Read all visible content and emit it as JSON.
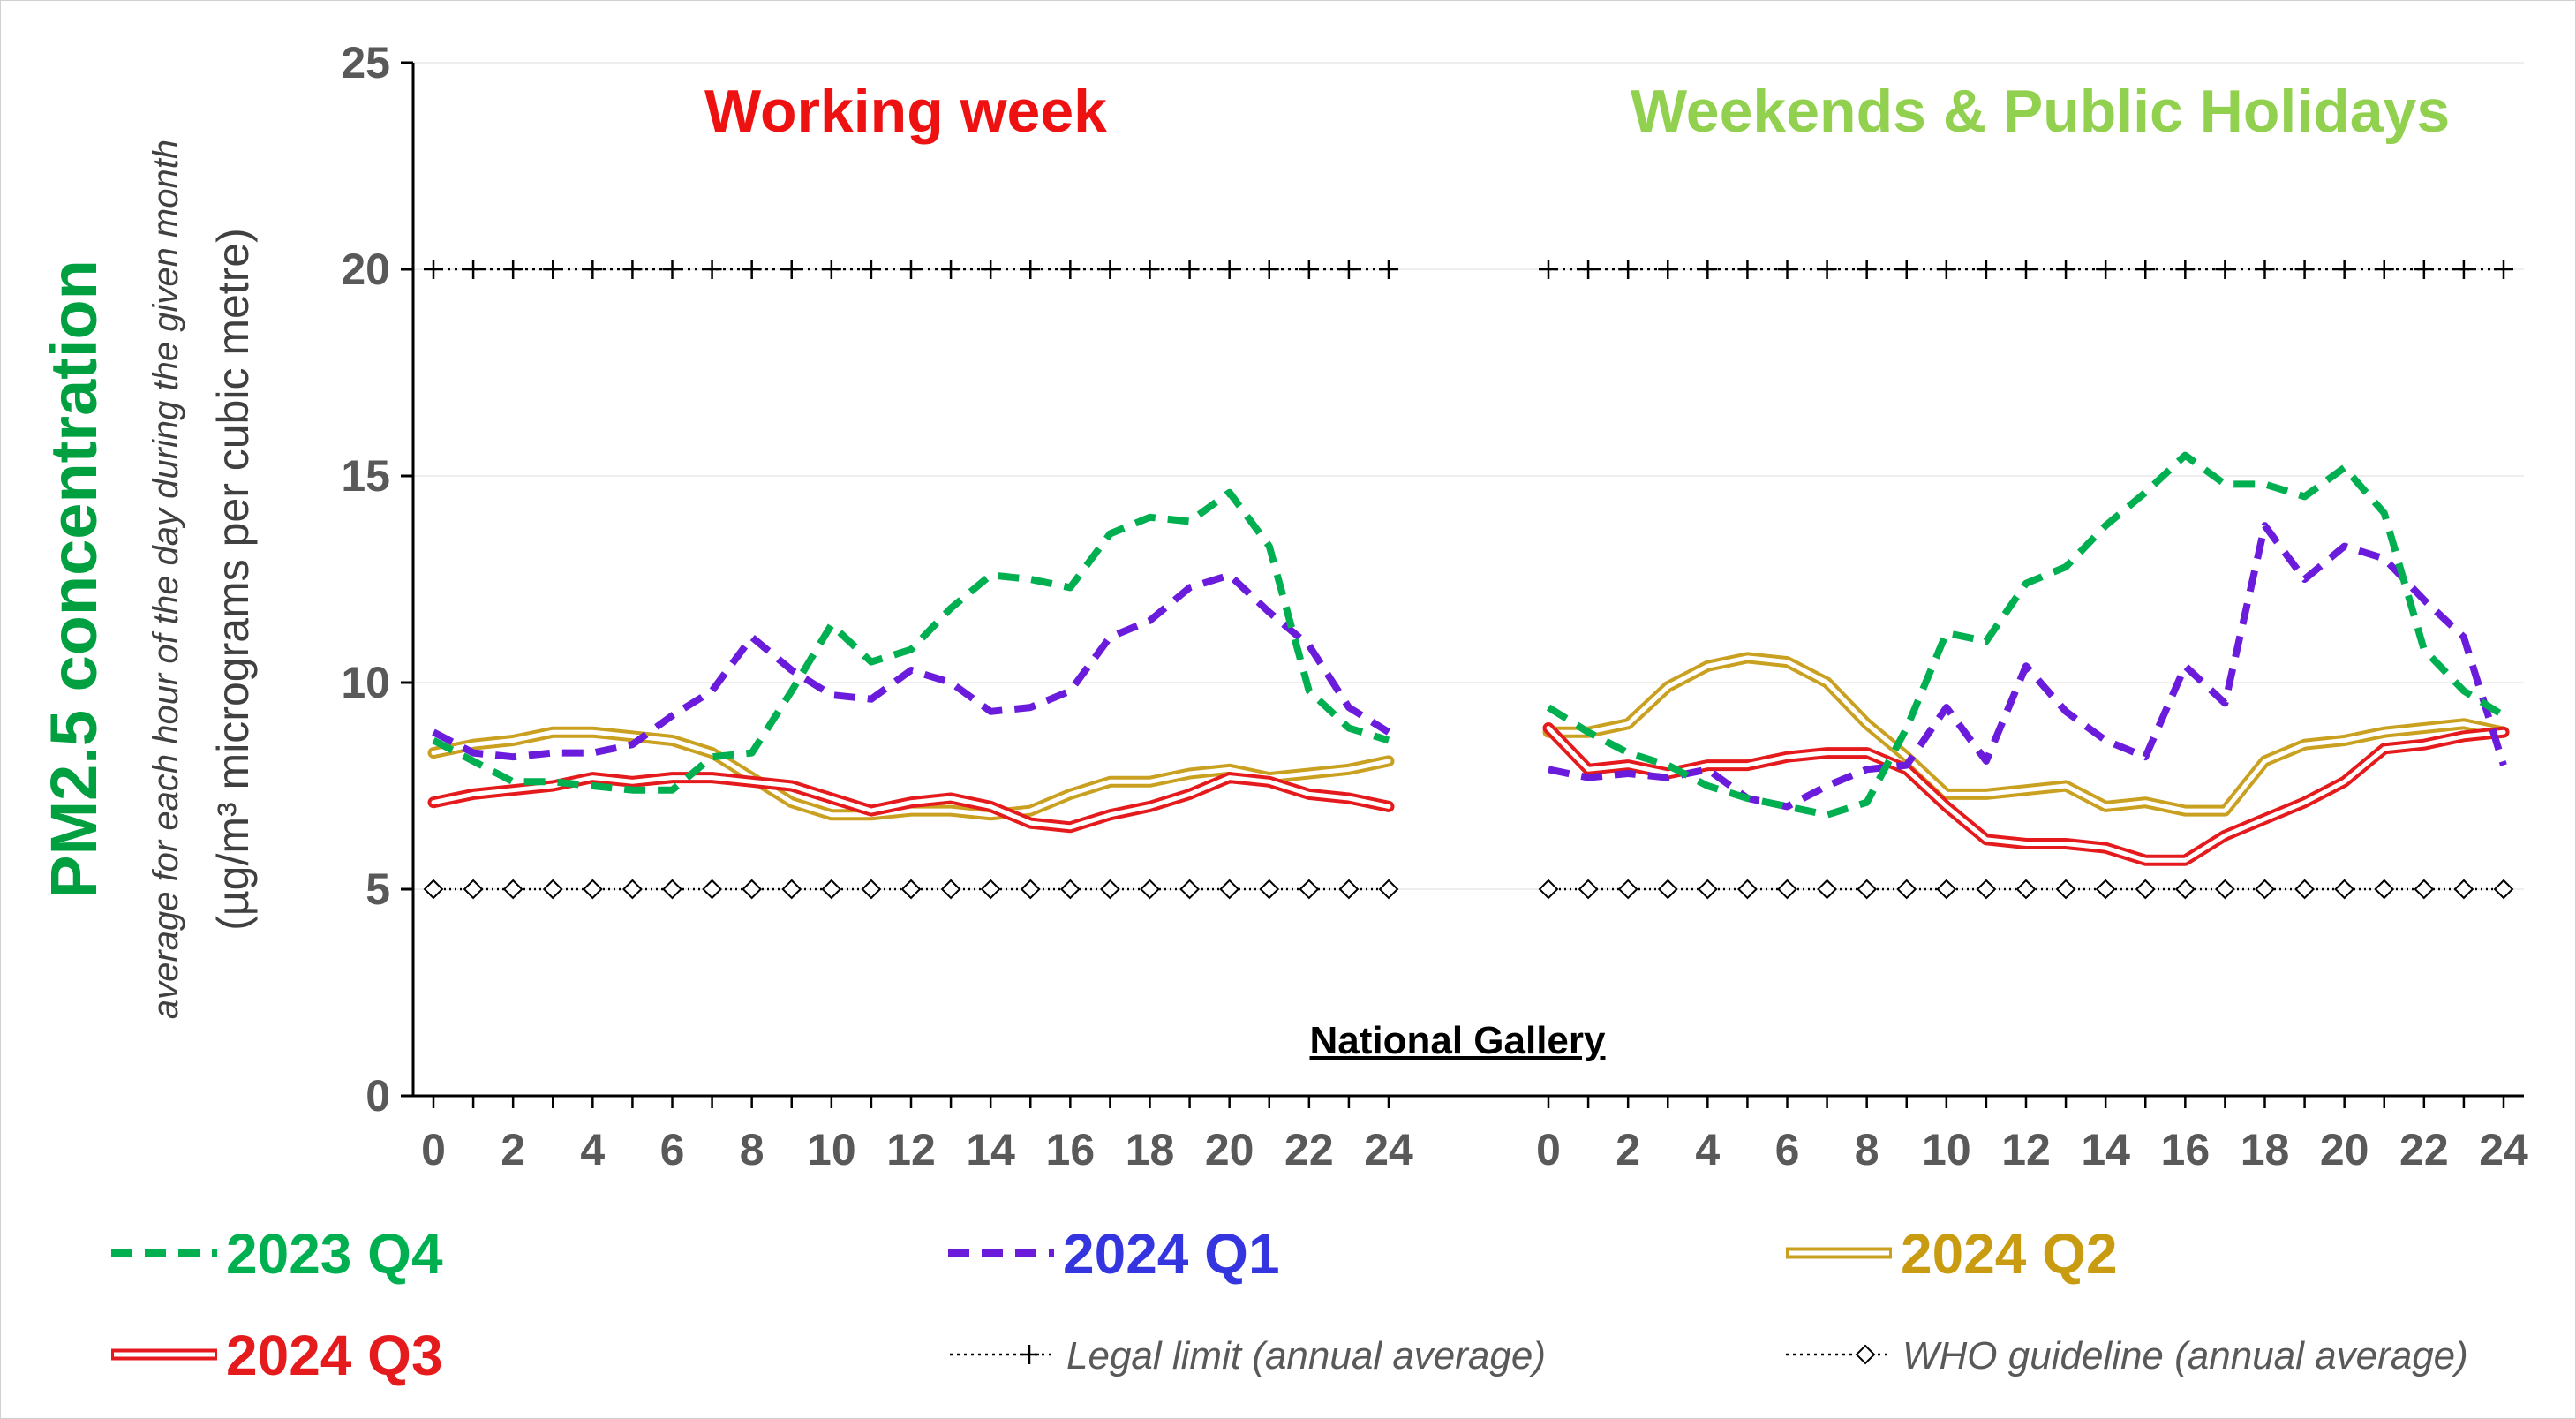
{
  "chart_data": {
    "type": "line",
    "ylabel": "PM2.5 concentration",
    "ylabel_sub": "average for each hour of the day during the given month",
    "ylabel_unit": "(µg/m³ micrograms per cubic metre)",
    "ylim": [
      0,
      25
    ],
    "yticks": [
      0,
      5,
      10,
      15,
      20,
      25
    ],
    "xticks": [
      0,
      2,
      4,
      6,
      8,
      10,
      12,
      14,
      16,
      18,
      20,
      22,
      24
    ],
    "site": "National Gallery",
    "grid": "horizontal",
    "colors": {
      "q4_2023": "#00b050",
      "q1_2024": "#6a1bdc",
      "q2_2024": "#c9a020",
      "q3_2024": "#e41a1c",
      "working_title": "#ee1111",
      "weekend_title": "#92d050",
      "legend_q1_text": "#3535e0",
      "legend_q2_text": "#c89b10",
      "reference": "#000000"
    },
    "legend": [
      {
        "key": "q4_2023",
        "label": "2023 Q4",
        "style": "dashed"
      },
      {
        "key": "q1_2024",
        "label": "2024 Q1",
        "style": "dashed"
      },
      {
        "key": "q2_2024",
        "label": "2024 Q2",
        "style": "double"
      },
      {
        "key": "q3_2024",
        "label": "2024 Q3",
        "style": "double"
      }
    ],
    "reference_lines": [
      {
        "key": "legal",
        "label": "Legal limit (annual average)",
        "value": 20,
        "marker": "plus"
      },
      {
        "key": "who",
        "label": "WHO guideline (annual average)",
        "value": 5,
        "marker": "diamond"
      }
    ],
    "panels": [
      {
        "title": "Working week",
        "series": {
          "q4_2023": [
            8.6,
            8.1,
            7.6,
            7.6,
            7.5,
            7.4,
            7.4,
            8.2,
            8.3,
            9.8,
            11.4,
            10.5,
            10.8,
            11.8,
            12.6,
            12.5,
            12.3,
            13.6,
            14.0,
            13.9,
            14.6,
            13.3,
            9.8,
            8.9,
            8.6
          ],
          "q1_2024": [
            8.8,
            8.3,
            8.2,
            8.3,
            8.3,
            8.5,
            9.2,
            9.8,
            11.1,
            10.3,
            9.7,
            9.6,
            10.3,
            10.0,
            9.3,
            9.4,
            9.8,
            11.1,
            11.5,
            12.3,
            12.6,
            11.7,
            10.9,
            9.4,
            8.8
          ],
          "q2_2024": [
            8.3,
            8.5,
            8.6,
            8.8,
            8.8,
            8.7,
            8.6,
            8.3,
            7.7,
            7.1,
            6.8,
            6.8,
            6.9,
            6.9,
            6.8,
            6.9,
            7.3,
            7.6,
            7.6,
            7.8,
            7.9,
            7.7,
            7.8,
            7.9,
            8.1
          ],
          "q3_2024": [
            7.1,
            7.3,
            7.4,
            7.5,
            7.7,
            7.6,
            7.7,
            7.7,
            7.6,
            7.5,
            7.2,
            6.9,
            7.1,
            7.2,
            7.0,
            6.6,
            6.5,
            6.8,
            7.0,
            7.3,
            7.7,
            7.6,
            7.3,
            7.2,
            7.0
          ]
        }
      },
      {
        "title": "Weekends & Public Holidays",
        "series": {
          "q4_2023": [
            9.4,
            8.8,
            8.3,
            8.0,
            7.5,
            7.2,
            7.0,
            6.8,
            7.1,
            8.9,
            11.2,
            11.0,
            12.4,
            12.8,
            13.8,
            14.6,
            15.5,
            14.8,
            14.8,
            14.5,
            15.2,
            14.1,
            10.8,
            9.8,
            9.2
          ],
          "q1_2024": [
            7.9,
            7.7,
            7.8,
            7.7,
            7.9,
            7.2,
            7.0,
            7.5,
            7.9,
            8.0,
            9.4,
            8.1,
            10.4,
            9.3,
            8.6,
            8.2,
            10.4,
            9.5,
            13.8,
            12.5,
            13.3,
            13.0,
            12.0,
            11.1,
            8.0
          ],
          "q2_2024": [
            8.8,
            8.8,
            9.0,
            9.9,
            10.4,
            10.6,
            10.5,
            10.0,
            9.0,
            8.2,
            7.3,
            7.3,
            7.4,
            7.5,
            7.0,
            7.1,
            6.9,
            6.9,
            8.1,
            8.5,
            8.6,
            8.8,
            8.9,
            9.0,
            8.8
          ],
          "q3_2024": [
            8.9,
            7.9,
            8.0,
            7.8,
            8.0,
            8.0,
            8.2,
            8.3,
            8.3,
            7.9,
            7.0,
            6.2,
            6.1,
            6.1,
            6.0,
            5.7,
            5.7,
            6.3,
            6.7,
            7.1,
            7.6,
            8.4,
            8.5,
            8.7,
            8.8
          ]
        }
      }
    ]
  }
}
